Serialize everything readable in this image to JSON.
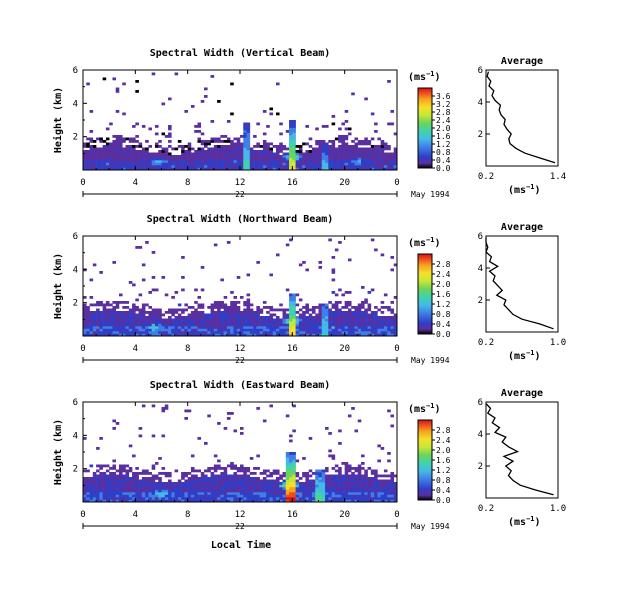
{
  "figure": {
    "bottom_xlabel": "Local Time",
    "day_label": "22",
    "month_label": "May 1994",
    "colorbar_unit": "(ms",
    "colorbar_unit_exp": "−1",
    "avg_title": "Average",
    "avg_xunit": "(ms",
    "avg_xunit_exp": "−1",
    "ylabel": "Height (km)"
  },
  "colors": {
    "scale": [
      "#000000",
      "#5a2fa0",
      "#2f3ec8",
      "#3f7fe6",
      "#45b8e8",
      "#3fd2b0",
      "#6bd45a",
      "#c6e63a",
      "#f6e02a",
      "#f7a11f",
      "#ee4b1b",
      "#d4151c"
    ]
  },
  "chart_data": [
    {
      "type": "heatmap",
      "title": "Spectral Width (Vertical Beam)",
      "xlabel": "",
      "ylabel": "Height (km)",
      "xlim": [
        0,
        24
      ],
      "ylim": [
        0,
        6
      ],
      "x_ticks": [
        "0",
        "4",
        "8",
        "12",
        "16",
        "20",
        "0"
      ],
      "y_ticks": [
        "2",
        "4",
        "6"
      ],
      "colorbar": {
        "ticks": [
          "0.0",
          "0.4",
          "0.8",
          "1.2",
          "1.6",
          "2.0",
          "2.4",
          "2.8",
          "3.2",
          "3.6"
        ],
        "range": [
          0,
          4.0
        ]
      },
      "features": {
        "base_top_km": 1.2,
        "spikes": [
          {
            "t": 12.5,
            "h": 2.8,
            "v": 1.5
          },
          {
            "t": 16.0,
            "h": 3.0,
            "v": 2.4
          },
          {
            "t": 18.5,
            "h": 1.6,
            "v": 1.2
          }
        ],
        "hotspots": [
          {
            "t": 5.8,
            "h": 0.5,
            "v": 1.6
          },
          {
            "t": 16.0,
            "h": 0.8,
            "v": 2.2
          },
          {
            "t": 21.0,
            "h": 0.5,
            "v": 1.4
          }
        ]
      },
      "average_profile": {
        "title": "Average",
        "xlim": [
          0.2,
          1.4
        ],
        "ylim": [
          0,
          6
        ],
        "x_ticks": [
          "0.2",
          "1.4"
        ],
        "y_ticks": [
          "2",
          "4",
          "6"
        ],
        "height_km": [
          0.2,
          0.5,
          0.8,
          1.1,
          1.4,
          1.7,
          2.0,
          2.3,
          2.6,
          2.9,
          3.2,
          3.5,
          3.8,
          4.1,
          4.4,
          4.7,
          5.0,
          5.3,
          5.6,
          5.9
        ],
        "width": [
          1.35,
          1.1,
          0.85,
          0.7,
          0.6,
          0.58,
          0.62,
          0.55,
          0.5,
          0.52,
          0.45,
          0.42,
          0.44,
          0.35,
          0.3,
          0.33,
          0.25,
          0.28,
          0.22,
          0.24
        ]
      }
    },
    {
      "type": "heatmap",
      "title": "Spectral Width (Northward Beam)",
      "xlabel": "",
      "ylabel": "Height (km)",
      "xlim": [
        0,
        24
      ],
      "ylim": [
        0,
        6
      ],
      "x_ticks": [
        "0",
        "4",
        "8",
        "12",
        "16",
        "20",
        "0"
      ],
      "y_ticks": [
        "2",
        "4",
        "6"
      ],
      "colorbar": {
        "ticks": [
          "0.0",
          "0.4",
          "0.8",
          "1.2",
          "1.6",
          "2.0",
          "2.4",
          "2.8"
        ],
        "range": [
          0,
          3.2
        ]
      },
      "features": {
        "base_top_km": 1.3,
        "spikes": [
          {
            "t": 16.0,
            "h": 2.6,
            "v": 2.0
          },
          {
            "t": 18.5,
            "h": 2.0,
            "v": 1.0
          }
        ],
        "hotspots": [
          {
            "t": 5.5,
            "h": 0.5,
            "v": 1.4
          },
          {
            "t": 16.0,
            "h": 0.9,
            "v": 1.9
          }
        ]
      },
      "average_profile": {
        "title": "Average",
        "xlim": [
          0.2,
          1.0
        ],
        "ylim": [
          0,
          6
        ],
        "x_ticks": [
          "0.2",
          "1.0"
        ],
        "y_ticks": [
          "2",
          "4",
          "6"
        ],
        "height_km": [
          0.2,
          0.5,
          0.8,
          1.1,
          1.4,
          1.7,
          2.0,
          2.3,
          2.6,
          2.9,
          3.2,
          3.5,
          3.8,
          4.1,
          4.4,
          4.7,
          5.0,
          5.3,
          5.6,
          5.9
        ],
        "width": [
          0.95,
          0.8,
          0.6,
          0.5,
          0.45,
          0.4,
          0.42,
          0.32,
          0.38,
          0.33,
          0.28,
          0.3,
          0.24,
          0.33,
          0.24,
          0.26,
          0.2,
          0.22,
          0.2,
          0.2
        ]
      }
    },
    {
      "type": "heatmap",
      "title": "Spectral Width (Eastward Beam)",
      "xlabel": "Local Time",
      "ylabel": "Height (km)",
      "xlim": [
        0,
        24
      ],
      "ylim": [
        0,
        6
      ],
      "x_ticks": [
        "0",
        "4",
        "8",
        "12",
        "16",
        "20",
        "0"
      ],
      "y_ticks": [
        "2",
        "4",
        "6"
      ],
      "colorbar": {
        "ticks": [
          "0.0",
          "0.4",
          "0.8",
          "1.2",
          "1.6",
          "2.0",
          "2.4",
          "2.8"
        ],
        "range": [
          0,
          3.2
        ]
      },
      "features": {
        "base_top_km": 1.4,
        "spikes": [
          {
            "t": 15.8,
            "h": 3.0,
            "v": 2.6
          },
          {
            "t": 18.2,
            "h": 2.0,
            "v": 1.2
          }
        ],
        "hotspots": [
          {
            "t": 6.0,
            "h": 0.5,
            "v": 1.3
          },
          {
            "t": 15.8,
            "h": 1.0,
            "v": 2.3
          }
        ]
      },
      "average_profile": {
        "title": "Average",
        "xlim": [
          0.2,
          1.0
        ],
        "ylim": [
          0,
          6
        ],
        "x_ticks": [
          "0.2",
          "1.0"
        ],
        "y_ticks": [
          "2",
          "4",
          "6"
        ],
        "height_km": [
          0.2,
          0.5,
          0.8,
          1.1,
          1.4,
          1.7,
          2.0,
          2.3,
          2.6,
          2.9,
          3.2,
          3.5,
          3.8,
          4.1,
          4.4,
          4.7,
          5.0,
          5.3,
          5.6,
          5.9
        ],
        "width": [
          0.95,
          0.75,
          0.58,
          0.5,
          0.45,
          0.48,
          0.42,
          0.5,
          0.4,
          0.55,
          0.45,
          0.38,
          0.42,
          0.3,
          0.35,
          0.27,
          0.3,
          0.22,
          0.25,
          0.2
        ]
      }
    }
  ]
}
